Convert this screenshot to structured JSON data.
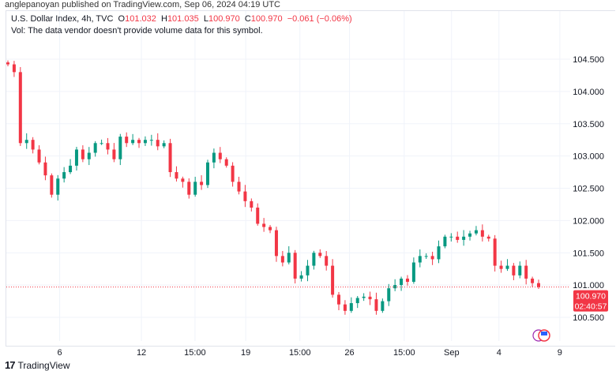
{
  "publisher": "anglepanoyan published on TradingView.com, Sep 06, 2024 04:19 UTC",
  "legend": {
    "symbol": "U.S. Dollar Index, 4h, TVC",
    "o_label": "O",
    "o": "101.032",
    "h_label": "H",
    "h": "101.035",
    "l_label": "L",
    "l": "100.970",
    "c_label": "C",
    "c": "100.970",
    "change": "−0.061 (−0.06%)",
    "vol_note": "Vol: The data vendor doesn't provide volume data for this symbol."
  },
  "last_price": {
    "price": "100.970",
    "countdown": "02:40:57"
  },
  "footer": {
    "brand": "TradingView"
  },
  "colors": {
    "up": "#089981",
    "down": "#f23645",
    "grid": "#f0f3fa"
  },
  "chart_data": {
    "type": "candlestick",
    "title": "U.S. Dollar Index, 4h, TVC",
    "y_ticks": [
      "104.500",
      "104.000",
      "103.500",
      "103.000",
      "102.500",
      "102.000",
      "101.500",
      "101.000",
      "100.500"
    ],
    "y_tick_values": [
      104.5,
      104.0,
      103.5,
      103.0,
      102.5,
      102.0,
      101.5,
      101.0,
      100.5
    ],
    "ylim": [
      100.1,
      104.75
    ],
    "x_ticks": [
      "6",
      "12",
      "15:00",
      "19",
      "15:00",
      "26",
      "15:00",
      "Sep",
      "4",
      "9"
    ],
    "x_tick_positions": [
      9.6,
      24.1,
      33.6,
      42.6,
      52.2,
      61,
      70.7,
      79.1,
      87.5,
      98.3
    ],
    "closes": [
      104.42,
      104.3,
      103.2,
      103.25,
      103.1,
      102.9,
      102.7,
      102.4,
      102.65,
      102.75,
      102.85,
      103.1,
      102.95,
      103.05,
      103.2,
      103.2,
      103.1,
      102.95,
      103.3,
      103.2,
      103.25,
      103.2,
      103.25,
      103.25,
      103.15,
      103.2,
      102.75,
      102.65,
      102.6,
      102.4,
      102.6,
      102.55,
      102.9,
      103.05,
      102.95,
      102.85,
      102.6,
      102.45,
      102.3,
      102.2,
      101.95,
      101.9,
      101.85,
      101.45,
      101.35,
      101.5,
      101.1,
      101.15,
      101.3,
      101.5,
      101.45,
      101.3,
      100.85,
      100.7,
      100.6,
      100.72,
      100.8,
      100.82,
      100.78,
      100.6,
      100.75,
      100.95,
      101.0,
      101.1,
      101.05,
      101.35,
      101.45,
      101.45,
      101.4,
      101.6,
      101.75,
      101.75,
      101.7,
      101.75,
      101.8,
      101.85,
      101.75,
      101.72,
      101.3,
      101.25,
      101.3,
      101.15,
      101.3,
      101.1,
      101.03,
      100.97
    ],
    "first_open": 104.45,
    "last_close": 100.97
  }
}
